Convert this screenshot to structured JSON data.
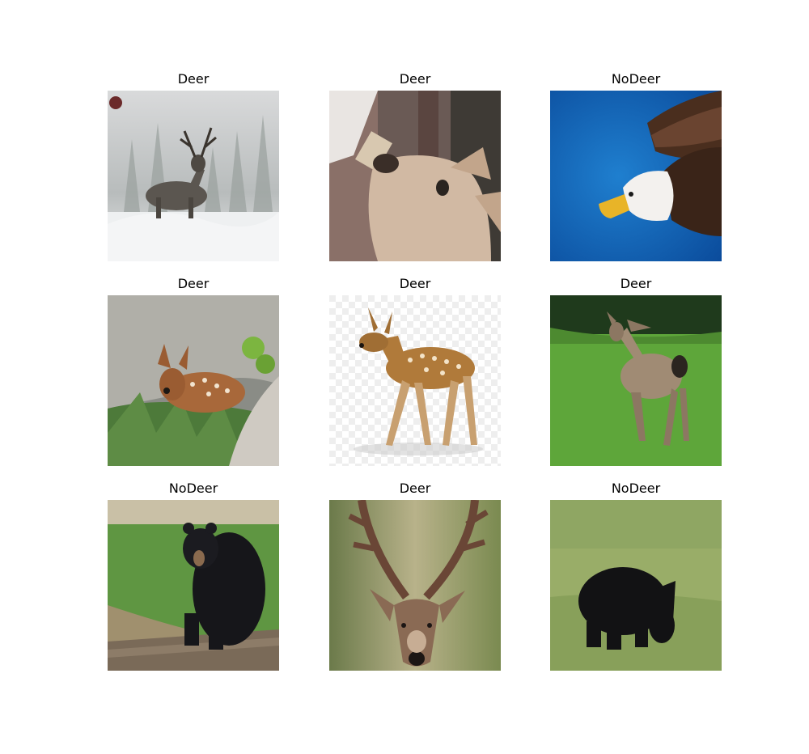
{
  "grid": {
    "panels": [
      {
        "label": "Deer",
        "subject": "mule-deer-buck-in-snow"
      },
      {
        "label": "Deer",
        "subject": "fawn-drinking-from-bottle"
      },
      {
        "label": "NoDeer",
        "subject": "bald-eagle-on-blue"
      },
      {
        "label": "Deer",
        "subject": "spotted-fawn-resting-in-grass"
      },
      {
        "label": "Deer",
        "subject": "spotted-fawn-standing"
      },
      {
        "label": "Deer",
        "subject": "doe-walking-on-grass"
      },
      {
        "label": "NoDeer",
        "subject": "black-bear-sitting-on-log"
      },
      {
        "label": "Deer",
        "subject": "buck-antlers-closeup"
      },
      {
        "label": "NoDeer",
        "subject": "black-bear-grazing-in-field"
      }
    ]
  }
}
